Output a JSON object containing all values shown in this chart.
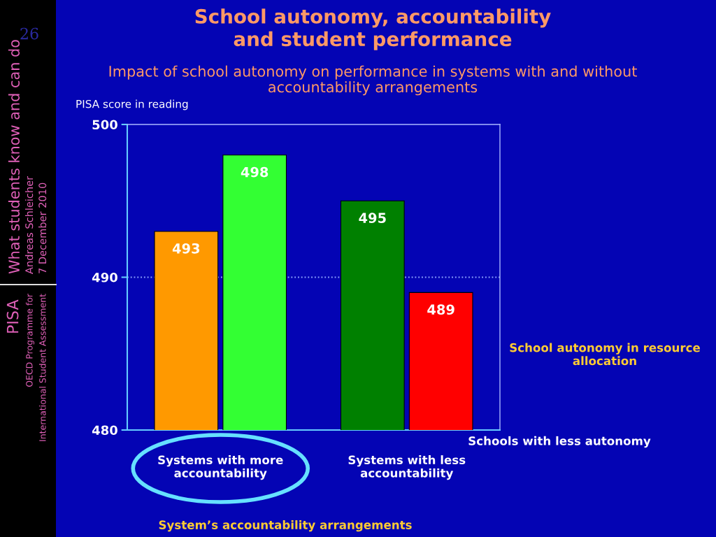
{
  "chart_data": {
    "type": "bar",
    "title": "School autonomy, accountability and student performance",
    "subtitle": "Impact of school autonomy on performance in systems with and without accountability arrangements",
    "xlabel": "System’s accountability arrangements",
    "ylabel": "PISA score in reading",
    "categories": [
      "Systems with more accountability",
      "Systems with less accountability"
    ],
    "series": [
      {
        "name": "Schools with less autonomy",
        "colors": [
          "#ff9900",
          "#008000"
        ],
        "values": [
          493,
          495
        ]
      },
      {
        "colors": [
          "#33ff33",
          "#ff0000"
        ],
        "values": [
          498,
          489
        ]
      }
    ],
    "ylim": [
      480,
      500
    ],
    "yticks": [
      480,
      490,
      500
    ],
    "data_labels": true,
    "ref_lines": [
      {
        "axis": "y",
        "value": 490,
        "color": "#8fa6ff",
        "line_style": "dotted"
      }
    ],
    "annotations": [
      "School autonomy in resource allocation",
      "What students know and can do",
      "Andreas Schleicher",
      "7 December 2010",
      "PISA",
      "OECD Programme for",
      "International Student Assessment",
      "26"
    ]
  }
}
